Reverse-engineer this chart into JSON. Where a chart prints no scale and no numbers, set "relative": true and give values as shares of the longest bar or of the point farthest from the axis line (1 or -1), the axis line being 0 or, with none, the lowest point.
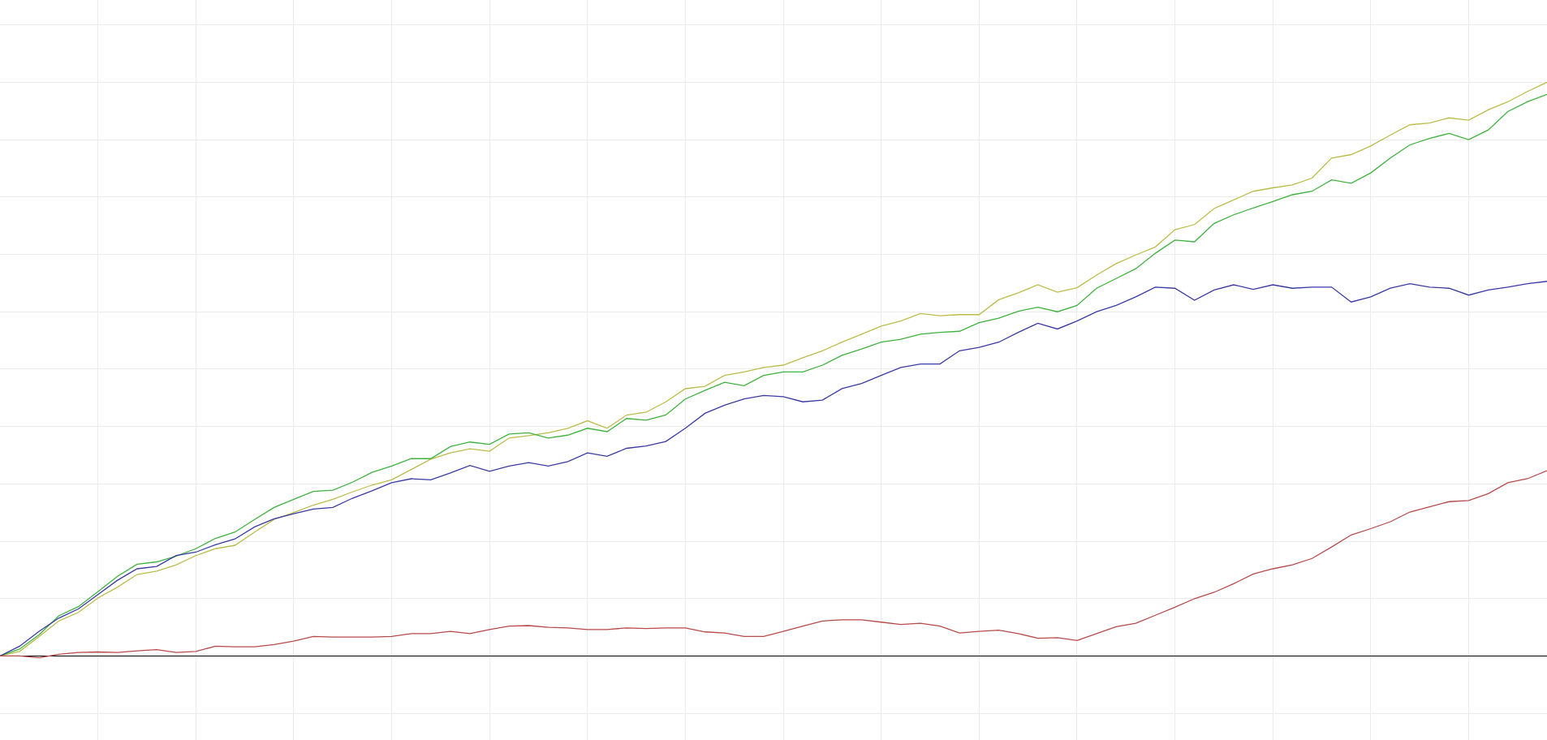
{
  "chart_data": {
    "type": "line",
    "relative": true,
    "grid": true,
    "categories": [
      null,
      null,
      null,
      null,
      null,
      null,
      null,
      null,
      null,
      null,
      null,
      null,
      null,
      null,
      null,
      null,
      null,
      null,
      null,
      null,
      null,
      null,
      null,
      null,
      null,
      null,
      null,
      null,
      null,
      null,
      null,
      null,
      null,
      null,
      null,
      null,
      null,
      null,
      null,
      null,
      null,
      null,
      null,
      null,
      null,
      null,
      null,
      null,
      null,
      null,
      null,
      null,
      null,
      null,
      null,
      null,
      null,
      null,
      null,
      null,
      null,
      null,
      null,
      null,
      null,
      null,
      null,
      null,
      null,
      null,
      null,
      null,
      null,
      null,
      null,
      null,
      null,
      null,
      null,
      null
    ],
    "series": [
      {
        "color": "#bcbc4a",
        "values": [
          0,
          0.008,
          0.034,
          0.061,
          0.076,
          0.101,
          0.12,
          0.142,
          0.148,
          0.159,
          0.175,
          0.187,
          0.193,
          0.216,
          0.238,
          0.25,
          0.263,
          0.273,
          0.286,
          0.298,
          0.307,
          0.325,
          0.343,
          0.354,
          0.361,
          0.357,
          0.38,
          0.384,
          0.389,
          0.397,
          0.41,
          0.397,
          0.42,
          0.425,
          0.443,
          0.466,
          0.47,
          0.489,
          0.495,
          0.503,
          0.507,
          0.52,
          0.532,
          0.547,
          0.561,
          0.575,
          0.584,
          0.597,
          0.593,
          0.595,
          0.595,
          0.621,
          0.633,
          0.647,
          0.634,
          0.642,
          0.664,
          0.684,
          0.699,
          0.713,
          0.743,
          0.752,
          0.78,
          0.795,
          0.81,
          0.816,
          0.821,
          0.833,
          0.868,
          0.874,
          0.889,
          0.908,
          0.926,
          0.929,
          0.938,
          0.934,
          0.952,
          0.966,
          0.984,
          1
        ]
      },
      {
        "color": "#3fb23f",
        "values": [
          0,
          0.012,
          0.037,
          0.07,
          0.086,
          0.112,
          0.139,
          0.16,
          0.164,
          0.174,
          0.187,
          0.205,
          0.216,
          0.238,
          0.259,
          0.273,
          0.287,
          0.289,
          0.303,
          0.32,
          0.331,
          0.344,
          0.344,
          0.365,
          0.373,
          0.369,
          0.387,
          0.389,
          0.38,
          0.385,
          0.397,
          0.391,
          0.414,
          0.411,
          0.42,
          0.448,
          0.463,
          0.477,
          0.471,
          0.489,
          0.495,
          0.495,
          0.507,
          0.524,
          0.535,
          0.547,
          0.552,
          0.561,
          0.564,
          0.566,
          0.581,
          0.589,
          0.601,
          0.608,
          0.6,
          0.611,
          0.641,
          0.658,
          0.675,
          0.702,
          0.725,
          0.722,
          0.754,
          0.769,
          0.781,
          0.792,
          0.804,
          0.81,
          0.83,
          0.824,
          0.842,
          0.868,
          0.891,
          0.902,
          0.911,
          0.9,
          0.917,
          0.949,
          0.966,
          0.979
        ]
      },
      {
        "color": "#3a3aa6",
        "values": [
          0,
          0.017,
          0.043,
          0.066,
          0.082,
          0.107,
          0.132,
          0.152,
          0.156,
          0.175,
          0.181,
          0.194,
          0.204,
          0.225,
          0.239,
          0.248,
          0.256,
          0.259,
          0.275,
          0.288,
          0.302,
          0.309,
          0.307,
          0.319,
          0.332,
          0.322,
          0.331,
          0.337,
          0.331,
          0.339,
          0.354,
          0.348,
          0.362,
          0.366,
          0.374,
          0.397,
          0.423,
          0.437,
          0.448,
          0.454,
          0.452,
          0.443,
          0.446,
          0.466,
          0.475,
          0.489,
          0.503,
          0.509,
          0.509,
          0.532,
          0.538,
          0.547,
          0.564,
          0.58,
          0.57,
          0.584,
          0.6,
          0.611,
          0.626,
          0.643,
          0.641,
          0.62,
          0.638,
          0.647,
          0.639,
          0.647,
          0.641,
          0.643,
          0.643,
          0.617,
          0.626,
          0.641,
          0.649,
          0.643,
          0.641,
          0.629,
          0.638,
          0.643,
          0.649,
          0.653
        ]
      },
      {
        "color": "#b84a4a",
        "values": [
          0,
          0,
          -0.003,
          0.003,
          0.006,
          0.007,
          0.006,
          0.009,
          0.011,
          0.006,
          0.008,
          0.017,
          0.016,
          0.016,
          0.02,
          0.026,
          0.034,
          0.033,
          0.033,
          0.033,
          0.034,
          0.039,
          0.039,
          0.043,
          0.039,
          0.046,
          0.052,
          0.053,
          0.05,
          0.049,
          0.046,
          0.046,
          0.049,
          0.048,
          0.049,
          0.049,
          0.042,
          0.04,
          0.034,
          0.034,
          0.043,
          0.052,
          0.061,
          0.063,
          0.063,
          0.059,
          0.055,
          0.057,
          0.052,
          0.04,
          0.043,
          0.045,
          0.039,
          0.031,
          0.032,
          0.027,
          0.039,
          0.051,
          0.057,
          0.071,
          0.085,
          0.1,
          0.111,
          0.126,
          0.143,
          0.152,
          0.159,
          0.17,
          0.19,
          0.211,
          0.222,
          0.234,
          0.251,
          0.26,
          0.269,
          0.271,
          0.283,
          0.302,
          0.309,
          0.323
        ]
      }
    ]
  }
}
